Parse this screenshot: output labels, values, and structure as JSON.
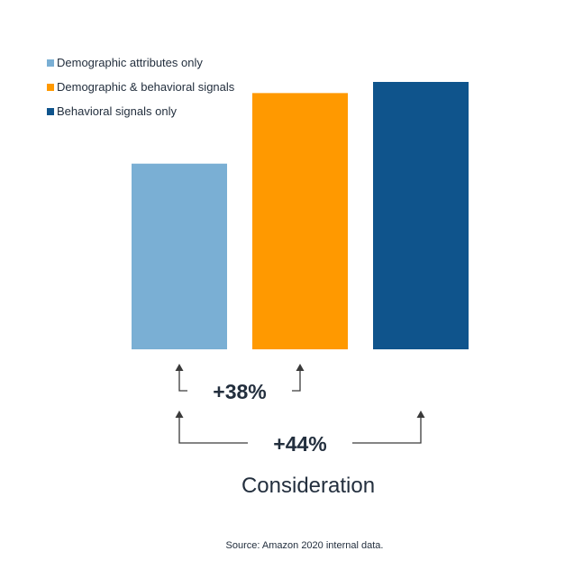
{
  "chart_data": {
    "type": "bar",
    "title": "",
    "categories": [
      "Demographic attributes only",
      "Demographic & behavioral signals",
      "Behavioral signals only"
    ],
    "values": [
      100,
      138,
      144
    ],
    "colors": [
      "#7aafd4",
      "#ff9900",
      "#0f548c"
    ],
    "xlabel": "Consideration",
    "ylabel": "",
    "ylim": [
      0,
      144
    ],
    "grid": false,
    "legend": {
      "placement": "top-left",
      "entries": [
        "Demographic attributes only",
        "Demographic & behavioral signals",
        "Behavioral signals only"
      ]
    },
    "annotations": [
      {
        "text": "+38%",
        "from": "Demographic attributes only",
        "to": "Demographic & behavioral signals"
      },
      {
        "text": "+44%",
        "from": "Demographic attributes only",
        "to": "Behavioral signals only"
      }
    ]
  },
  "source_note": "Source: Amazon 2020 internal data."
}
